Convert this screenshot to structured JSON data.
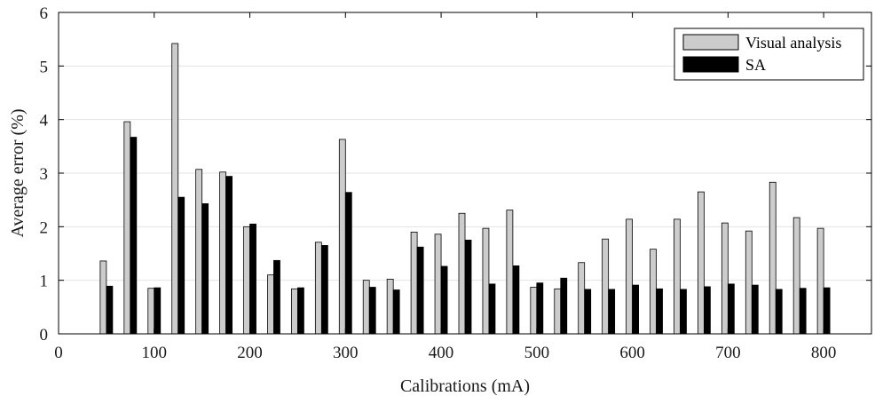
{
  "chart_data": {
    "type": "bar",
    "title": "",
    "xlabel": "Calibrations (mA)",
    "ylabel": "Average error (%)",
    "xlim": [
      0,
      850
    ],
    "ylim": [
      0,
      6
    ],
    "xticks": [
      0,
      100,
      200,
      300,
      400,
      500,
      600,
      700,
      800
    ],
    "yticks": [
      0,
      1,
      2,
      3,
      4,
      5,
      6
    ],
    "grid": "horizontal",
    "legend_position": "top-right",
    "categories": [
      50,
      75,
      100,
      125,
      150,
      175,
      200,
      225,
      250,
      275,
      300,
      325,
      350,
      375,
      400,
      425,
      450,
      475,
      500,
      525,
      550,
      575,
      600,
      625,
      650,
      675,
      700,
      725,
      750,
      775,
      800
    ],
    "series": [
      {
        "name": "Visual analysis",
        "color": "#cccccc",
        "values": [
          1.36,
          3.96,
          0.85,
          5.42,
          3.07,
          3.02,
          2.0,
          1.1,
          0.84,
          1.71,
          3.63,
          1.0,
          1.02,
          1.9,
          1.86,
          2.25,
          1.97,
          2.31,
          0.87,
          0.84,
          1.33,
          1.77,
          2.14,
          1.58,
          2.14,
          2.65,
          2.07,
          1.92,
          2.83,
          2.17,
          1.97
        ]
      },
      {
        "name": "SA",
        "color": "#000000",
        "values": [
          0.89,
          3.67,
          0.86,
          2.55,
          2.43,
          2.94,
          2.05,
          1.37,
          0.86,
          1.65,
          2.64,
          0.87,
          0.82,
          1.62,
          1.26,
          1.75,
          0.93,
          1.27,
          0.95,
          1.04,
          0.83,
          0.83,
          0.91,
          0.84,
          0.83,
          0.88,
          0.93,
          0.91,
          0.83,
          0.85,
          0.86
        ]
      }
    ]
  }
}
